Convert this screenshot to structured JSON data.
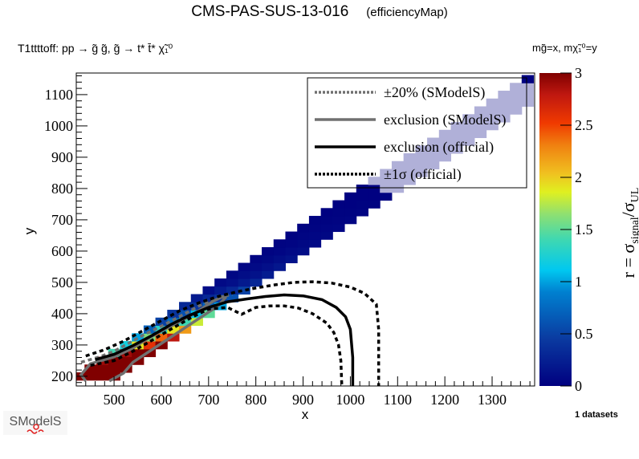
{
  "header": {
    "title": "CMS-PAS-SUS-13-016",
    "subtitle": "(efficiencyMap)",
    "process": "T1ttttoff: pp → g̃ g̃, g̃ → t* t̄* χ̃₁⁰",
    "axes_definition": "mg̃=x, mχ̃₁⁰=y"
  },
  "footer": {
    "datasets_label": "1 datasets",
    "logo_text": "SModelS"
  },
  "chart_data": {
    "type": "heatmap",
    "title": "CMS-PAS-SUS-13-016 (efficiencyMap)",
    "xlabel": "x",
    "ylabel": "y",
    "xlim": [
      420,
      1390
    ],
    "ylim": [
      169,
      1169
    ],
    "xticks": [
      "500",
      "600",
      "700",
      "800",
      "900",
      "1000",
      "1100",
      "1200",
      "1300"
    ],
    "xtick_values": [
      500,
      600,
      700,
      800,
      900,
      1000,
      1100,
      1200,
      1300
    ],
    "yticks": [
      "200",
      "300",
      "400",
      "500",
      "600",
      "700",
      "800",
      "900",
      "1000",
      "1100"
    ],
    "ytick_values": [
      200,
      300,
      400,
      500,
      600,
      700,
      800,
      900,
      1000,
      1100
    ],
    "colorbar": {
      "label": "r = σsignal/σUL",
      "label_main": "r = σ",
      "label_sub1": "signal",
      "label_sep": "/σ",
      "label_sub2": "UL",
      "range": [
        0,
        3
      ],
      "ticks": [
        "0",
        "0.5",
        "1",
        "1.5",
        "2",
        "2.5",
        "3"
      ],
      "tick_values": [
        0,
        0.5,
        1,
        1.5,
        2,
        2.5,
        3
      ]
    },
    "cell_size": [
      25,
      25
    ],
    "cells": [
      [
        425,
        200,
        3.2
      ],
      [
        450,
        200,
        3.2
      ],
      [
        475,
        200,
        3.2
      ],
      [
        500,
        200,
        3.2
      ],
      [
        450,
        225,
        3.2
      ],
      [
        475,
        225,
        3.2
      ],
      [
        500,
        225,
        3.2
      ],
      [
        525,
        225,
        3.2
      ],
      [
        475,
        250,
        2.9
      ],
      [
        500,
        250,
        3.2
      ],
      [
        525,
        250,
        3.2
      ],
      [
        550,
        250,
        3.2
      ],
      [
        500,
        275,
        1.4
      ],
      [
        525,
        275,
        2.9
      ],
      [
        550,
        275,
        3.2
      ],
      [
        575,
        275,
        3.2
      ],
      [
        525,
        300,
        1.2
      ],
      [
        550,
        300,
        1.9
      ],
      [
        575,
        300,
        2.6
      ],
      [
        600,
        300,
        3.2
      ],
      [
        550,
        325,
        1.0
      ],
      [
        575,
        325,
        1.6
      ],
      [
        600,
        325,
        2.4
      ],
      [
        625,
        325,
        2.8
      ],
      [
        575,
        350,
        0.7
      ],
      [
        600,
        350,
        1.3
      ],
      [
        625,
        350,
        1.9
      ],
      [
        650,
        350,
        2.2
      ],
      [
        600,
        375,
        0.5
      ],
      [
        625,
        375,
        0.8
      ],
      [
        650,
        375,
        1.4
      ],
      [
        675,
        375,
        1.8
      ],
      [
        625,
        400,
        0.4
      ],
      [
        650,
        400,
        0.6
      ],
      [
        675,
        400,
        1.1
      ],
      [
        700,
        400,
        1.5
      ],
      [
        650,
        425,
        0.3
      ],
      [
        675,
        425,
        0.4
      ],
      [
        700,
        425,
        0.7
      ],
      [
        725,
        425,
        1.0
      ],
      [
        675,
        450,
        0.2
      ],
      [
        700,
        450,
        0.3
      ],
      [
        725,
        450,
        0.4
      ],
      [
        750,
        450,
        0.6
      ],
      [
        700,
        475,
        0.1
      ],
      [
        725,
        475,
        0.2
      ],
      [
        750,
        475,
        0.3
      ],
      [
        775,
        475,
        0.5
      ],
      [
        725,
        500,
        0.08
      ],
      [
        750,
        500,
        0.12
      ],
      [
        775,
        500,
        0.2
      ],
      [
        800,
        500,
        0.3
      ],
      [
        750,
        525,
        0.06
      ],
      [
        775,
        525,
        0.1
      ],
      [
        800,
        525,
        0.14
      ],
      [
        825,
        525,
        0.22
      ],
      [
        775,
        550,
        0.05
      ],
      [
        800,
        550,
        0.08
      ],
      [
        825,
        550,
        0.12
      ],
      [
        850,
        550,
        0.18
      ],
      [
        800,
        575,
        0.04
      ],
      [
        825,
        575,
        0.06
      ],
      [
        850,
        575,
        0.1
      ],
      [
        875,
        575,
        0.14
      ],
      [
        825,
        600,
        0.03
      ],
      [
        850,
        600,
        0.05
      ],
      [
        875,
        600,
        0.08
      ],
      [
        900,
        600,
        0.1
      ],
      [
        850,
        625,
        0.03
      ],
      [
        875,
        625,
        0.04
      ],
      [
        900,
        625,
        0.06
      ],
      [
        925,
        625,
        0.08
      ],
      [
        875,
        650,
        0.02
      ],
      [
        900,
        650,
        0.04
      ],
      [
        925,
        650,
        0.05
      ],
      [
        950,
        650,
        0.06
      ],
      [
        900,
        675,
        0.02
      ],
      [
        925,
        675,
        0.03
      ],
      [
        950,
        675,
        0.04
      ],
      [
        975,
        675,
        0.05
      ],
      [
        925,
        700,
        0.02
      ],
      [
        950,
        700,
        0.02
      ],
      [
        975,
        700,
        0.03
      ],
      [
        1000,
        700,
        0.04
      ],
      [
        950,
        725,
        0.01
      ],
      [
        975,
        725,
        0.02
      ],
      [
        1000,
        725,
        0.02
      ],
      [
        1025,
        725,
        0.03
      ],
      [
        975,
        750,
        0.01
      ],
      [
        1000,
        750,
        0.01
      ],
      [
        1025,
        750,
        0.02
      ],
      [
        1050,
        750,
        0.02
      ],
      [
        1000,
        775,
        0.01
      ],
      [
        1025,
        775,
        0.01
      ],
      [
        1050,
        775,
        0.01
      ],
      [
        1075,
        775,
        0.02
      ],
      [
        1025,
        800,
        0.01
      ],
      [
        1050,
        800,
        0.01
      ],
      [
        1075,
        800,
        -1
      ],
      [
        1100,
        800,
        -1
      ],
      [
        1050,
        825,
        -1
      ],
      [
        1075,
        825,
        -1
      ],
      [
        1100,
        825,
        -1
      ],
      [
        1125,
        825,
        -1
      ],
      [
        1075,
        850,
        -1
      ],
      [
        1100,
        850,
        -1
      ],
      [
        1125,
        850,
        -1
      ],
      [
        1150,
        850,
        -1
      ],
      [
        1100,
        875,
        -1
      ],
      [
        1125,
        875,
        -1
      ],
      [
        1150,
        875,
        -1
      ],
      [
        1175,
        875,
        -1
      ],
      [
        1125,
        900,
        -1
      ],
      [
        1150,
        900,
        -1
      ],
      [
        1175,
        900,
        -1
      ],
      [
        1200,
        900,
        -1
      ],
      [
        1150,
        925,
        -1
      ],
      [
        1175,
        925,
        -1
      ],
      [
        1200,
        925,
        -1
      ],
      [
        1225,
        925,
        -1
      ],
      [
        1175,
        950,
        -1
      ],
      [
        1200,
        950,
        -1
      ],
      [
        1225,
        950,
        -1
      ],
      [
        1250,
        950,
        -1
      ],
      [
        1200,
        975,
        -1
      ],
      [
        1225,
        975,
        -1
      ],
      [
        1250,
        975,
        -1
      ],
      [
        1275,
        975,
        -1
      ],
      [
        1225,
        1000,
        -1
      ],
      [
        1250,
        1000,
        -1
      ],
      [
        1275,
        1000,
        -1
      ],
      [
        1300,
        1000,
        -1
      ],
      [
        1250,
        1025,
        -1
      ],
      [
        1275,
        1025,
        -1
      ],
      [
        1300,
        1025,
        -1
      ],
      [
        1325,
        1025,
        -1
      ],
      [
        1275,
        1050,
        -1
      ],
      [
        1300,
        1050,
        -1
      ],
      [
        1325,
        1050,
        -1
      ],
      [
        1350,
        1050,
        -1
      ],
      [
        1300,
        1075,
        -1
      ],
      [
        1325,
        1075,
        -1
      ],
      [
        1350,
        1075,
        -1
      ],
      [
        1375,
        1075,
        -1
      ],
      [
        1325,
        1100,
        -1
      ],
      [
        1350,
        1100,
        -1
      ],
      [
        1375,
        1100,
        -1
      ],
      [
        1350,
        1125,
        -1
      ],
      [
        1375,
        1125,
        -1
      ],
      [
        1375,
        1150,
        0.01
      ]
    ],
    "out_of_range_color": "#b0b0d8",
    "series": [
      {
        "name": "±20% (SModelS)",
        "style": "dotted",
        "color": "#707070",
        "x": [
          430,
          470,
          500,
          530,
          560,
          600,
          640,
          680,
          710,
          730,
          750
        ],
        "y": [
          245,
          262,
          280,
          305,
          330,
          360,
          392,
          425,
          445,
          455,
          462
        ]
      },
      {
        "name": "exclusion (SModelS)",
        "style": "solid",
        "color": "#707070",
        "x": [
          440,
          430,
          450,
          500,
          540,
          560,
          600,
          640,
          680,
          710,
          730,
          735,
          720,
          690,
          660,
          630,
          600,
          570,
          540,
          520,
          490
        ],
        "y": [
          185,
          205,
          240,
          262,
          290,
          310,
          345,
          375,
          410,
          440,
          455,
          450,
          425,
          395,
          365,
          335,
          305,
          275,
          245,
          210,
          185
        ]
      },
      {
        "name": "exclusion (official)",
        "style": "solid",
        "color": "#000000",
        "x": [
          460,
          500,
          540,
          580,
          620,
          660,
          700,
          740,
          780,
          820,
          860,
          900,
          940,
          970,
          990,
          1000,
          1005,
          1005
        ],
        "y": [
          253,
          270,
          298,
          330,
          365,
          395,
          420,
          438,
          447,
          455,
          460,
          457,
          445,
          420,
          390,
          350,
          260,
          169
        ]
      },
      {
        "name": "±1σ (official)",
        "style": "dotted",
        "color": "#000000",
        "x": [
          440,
          480,
          520,
          560,
          600,
          640,
          680,
          720,
          760,
          800,
          840,
          880,
          920,
          960,
          1000,
          1030,
          1055,
          1060,
          1060
        ],
        "y": [
          265,
          285,
          312,
          345,
          378,
          410,
          435,
          455,
          470,
          482,
          492,
          500,
          502,
          498,
          485,
          465,
          430,
          350,
          169
        ]
      },
      {
        "name": "±1σ (official) lower",
        "style": "dotted",
        "color": "#000000",
        "x": [
          450,
          500,
          540,
          580,
          620,
          660,
          700,
          740,
          770,
          800,
          830,
          860,
          890,
          920,
          950,
          965,
          975,
          980,
          982
        ],
        "y": [
          235,
          250,
          280,
          315,
          350,
          385,
          415,
          420,
          398,
          420,
          425,
          425,
          418,
          400,
          370,
          340,
          300,
          250,
          169
        ]
      }
    ],
    "legend": {
      "placement": "top-right",
      "entries": [
        "±20% (SModelS)",
        "exclusion (SModelS)",
        "exclusion (official)",
        "±1σ (official)"
      ]
    }
  }
}
